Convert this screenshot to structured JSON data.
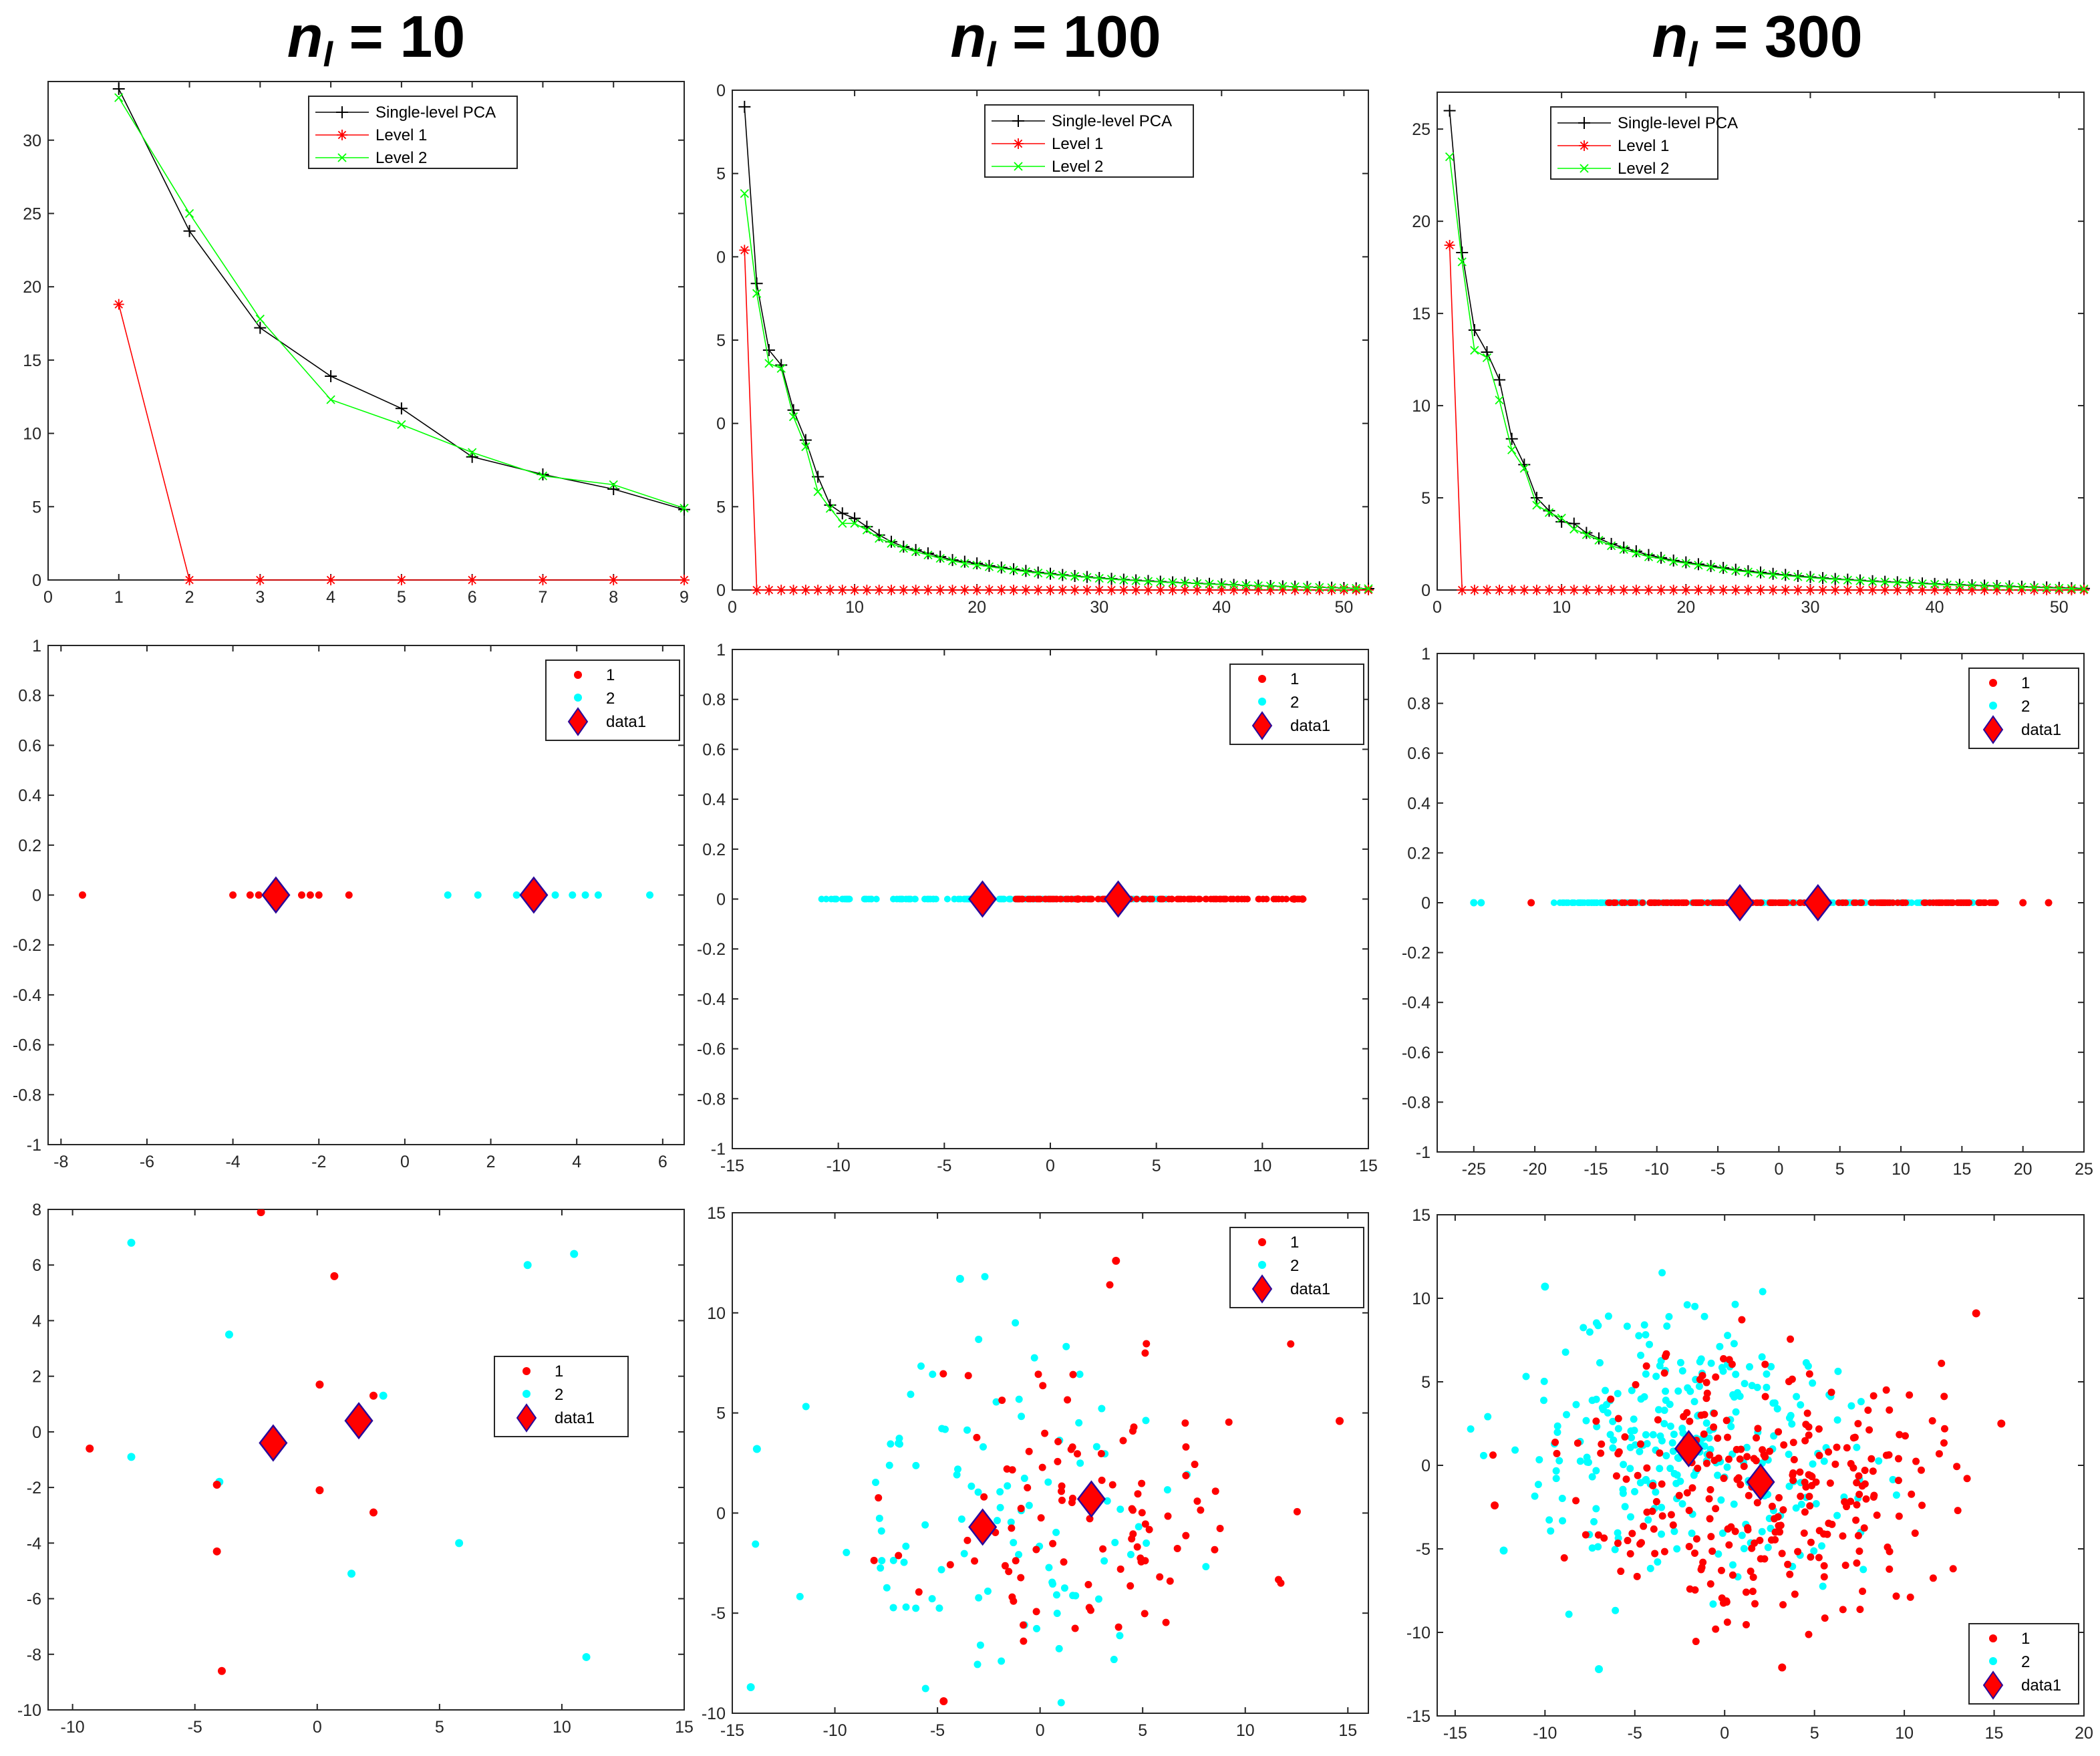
{
  "columns": [
    {
      "prefix": "n",
      "subscript": "l",
      "suffix": " = 10"
    },
    {
      "prefix": "n",
      "subscript": "l",
      "suffix": " = 100"
    },
    {
      "prefix": "n",
      "subscript": "l",
      "suffix": " = 300"
    }
  ],
  "colors": {
    "single": "#000000",
    "level1": "#ff0000",
    "level2": "#00ff00",
    "cls1": "#ff0000",
    "cls2": "#00ffff",
    "diamond_fill": "#ff0000",
    "diamond_edge": "#2a0a9a"
  },
  "chart_data": [
    {
      "type": "line",
      "name": "eigen-nl10",
      "xlim": [
        0,
        9
      ],
      "ylim": [
        0,
        34
      ],
      "xticks": [
        "0",
        "1",
        "2",
        "3",
        "4",
        "5",
        "6",
        "7",
        "8",
        "9"
      ],
      "yticks": [
        "0",
        "5",
        "10",
        "15",
        "20",
        "25",
        "30"
      ],
      "series": [
        {
          "name": "Single-level PCA",
          "x": [
            1,
            2,
            3,
            4,
            5,
            6,
            7,
            8,
            9
          ],
          "values": [
            33.5,
            23.8,
            17.2,
            13.9,
            11.7,
            8.4,
            7.2,
            6.2,
            4.8
          ]
        },
        {
          "name": "Level 1",
          "x": [
            1,
            2,
            3,
            4,
            5,
            6,
            7,
            8,
            9
          ],
          "values": [
            18.8,
            0,
            0,
            0,
            0,
            0,
            0,
            0,
            0
          ]
        },
        {
          "name": "Level 2",
          "x": [
            1,
            2,
            3,
            4,
            5,
            6,
            7,
            8,
            9
          ],
          "values": [
            32.9,
            25.0,
            17.8,
            12.3,
            10.6,
            8.7,
            7.1,
            6.5,
            4.9
          ]
        }
      ]
    },
    {
      "type": "line",
      "name": "eigen-nl100",
      "xlim": [
        0,
        52
      ],
      "ylim": [
        0,
        30
      ],
      "xticks": [
        "0",
        "10",
        "20",
        "30",
        "40",
        "50"
      ],
      "yticks": [
        "0",
        "5",
        "0",
        "5",
        "0",
        "5",
        "0"
      ],
      "series": [
        {
          "name": "Single-level PCA",
          "x_start": 1,
          "values": [
            29.0,
            18.4,
            14.4,
            13.5,
            10.8,
            9.0,
            6.8,
            5.1,
            4.6,
            4.3,
            3.8,
            3.3,
            2.9,
            2.6,
            2.4,
            2.2,
            2.0,
            1.8,
            1.7,
            1.6,
            1.45,
            1.35,
            1.25,
            1.15,
            1.05,
            0.98,
            0.9,
            0.84,
            0.78,
            0.72,
            0.67,
            0.62,
            0.58,
            0.54,
            0.5,
            0.46,
            0.43,
            0.4,
            0.37,
            0.34,
            0.31,
            0.28,
            0.26,
            0.24,
            0.22,
            0.2,
            0.18,
            0.16,
            0.14,
            0.12,
            0.1,
            0.08
          ]
        },
        {
          "name": "Level 1",
          "x_start": 1,
          "values": [
            20.4,
            0,
            0,
            0,
            0,
            0,
            0,
            0,
            0,
            0,
            0,
            0,
            0,
            0,
            0,
            0,
            0,
            0,
            0,
            0,
            0,
            0,
            0,
            0,
            0,
            0,
            0,
            0,
            0,
            0,
            0,
            0,
            0,
            0,
            0,
            0,
            0,
            0,
            0,
            0,
            0,
            0,
            0,
            0,
            0,
            0,
            0,
            0,
            0,
            0,
            0,
            0
          ]
        },
        {
          "name": "Level 2",
          "x_start": 1,
          "values": [
            23.8,
            17.8,
            13.6,
            13.3,
            10.4,
            8.6,
            5.9,
            4.9,
            4.0,
            4.0,
            3.6,
            3.1,
            2.8,
            2.5,
            2.3,
            2.1,
            1.9,
            1.75,
            1.6,
            1.5,
            1.4,
            1.3,
            1.2,
            1.1,
            1.02,
            0.95,
            0.88,
            0.82,
            0.76,
            0.7,
            0.65,
            0.6,
            0.56,
            0.52,
            0.48,
            0.45,
            0.42,
            0.39,
            0.36,
            0.33,
            0.3,
            0.28,
            0.26,
            0.24,
            0.22,
            0.2,
            0.18,
            0.16,
            0.14,
            0.12,
            0.1,
            0.08
          ]
        }
      ]
    },
    {
      "type": "line",
      "name": "eigen-nl300",
      "xlim": [
        0,
        52
      ],
      "ylim": [
        0,
        27
      ],
      "xticks": [
        "0",
        "10",
        "20",
        "30",
        "40",
        "50"
      ],
      "yticks": [
        "0",
        "5",
        "10",
        "15",
        "20",
        "25"
      ],
      "series": [
        {
          "name": "Single-level PCA",
          "x_start": 1,
          "values": [
            26.0,
            18.3,
            14.1,
            12.9,
            11.4,
            8.2,
            6.8,
            5.0,
            4.3,
            3.7,
            3.6,
            3.1,
            2.8,
            2.5,
            2.3,
            2.1,
            1.9,
            1.75,
            1.6,
            1.5,
            1.4,
            1.3,
            1.2,
            1.1,
            1.02,
            0.95,
            0.88,
            0.82,
            0.76,
            0.7,
            0.65,
            0.6,
            0.56,
            0.52,
            0.48,
            0.45,
            0.42,
            0.39,
            0.36,
            0.33,
            0.3,
            0.28,
            0.26,
            0.24,
            0.22,
            0.2,
            0.18,
            0.16,
            0.14,
            0.12,
            0.1,
            0.08
          ]
        },
        {
          "name": "Level 1",
          "x_start": 1,
          "values": [
            18.7,
            0,
            0,
            0,
            0,
            0,
            0,
            0,
            0,
            0,
            0,
            0,
            0,
            0,
            0,
            0,
            0,
            0,
            0,
            0,
            0,
            0,
            0,
            0,
            0,
            0,
            0,
            0,
            0,
            0,
            0,
            0,
            0,
            0,
            0,
            0,
            0,
            0,
            0,
            0,
            0,
            0,
            0,
            0,
            0,
            0,
            0,
            0,
            0,
            0,
            0,
            0
          ]
        },
        {
          "name": "Level 2",
          "x_start": 1,
          "values": [
            23.5,
            17.8,
            13.0,
            12.6,
            10.3,
            7.6,
            6.6,
            4.6,
            4.2,
            3.9,
            3.3,
            3.0,
            2.7,
            2.4,
            2.2,
            2.0,
            1.8,
            1.7,
            1.55,
            1.45,
            1.35,
            1.25,
            1.15,
            1.05,
            0.98,
            0.9,
            0.84,
            0.78,
            0.72,
            0.67,
            0.62,
            0.58,
            0.54,
            0.5,
            0.46,
            0.43,
            0.4,
            0.37,
            0.34,
            0.31,
            0.28,
            0.26,
            0.24,
            0.22,
            0.2,
            0.18,
            0.16,
            0.14,
            0.12,
            0.1,
            0.08,
            0.06
          ]
        }
      ]
    },
    {
      "type": "scatter",
      "name": "proj1d-nl10",
      "xlim": [
        -8.3,
        6.5
      ],
      "ylim": [
        -1,
        1
      ],
      "xticks": [
        "-8",
        "-6",
        "-4",
        "-2",
        "0",
        "2",
        "4",
        "6"
      ],
      "yticks": [
        "-1",
        "-0.8",
        "-0.6",
        "-0.4",
        "-0.2",
        "0",
        "0.2",
        "0.4",
        "0.6",
        "0.8",
        "1"
      ],
      "series": [
        {
          "name": "1",
          "x": [
            -7.5,
            -4.0,
            -3.6,
            -3.4,
            -3.2,
            -2.9,
            -2.4,
            -2.2,
            -2.0,
            -1.3
          ],
          "y": [
            0,
            0,
            0,
            0,
            0,
            0,
            0,
            0,
            0,
            0
          ]
        },
        {
          "name": "2",
          "x": [
            1.0,
            1.7,
            2.6,
            3.0,
            3.5,
            3.9,
            4.2,
            4.5,
            5.7
          ],
          "y": [
            0,
            0,
            0,
            0,
            0,
            0,
            0,
            0,
            0
          ]
        },
        {
          "name": "data1",
          "x": [
            -3.0,
            3.0
          ],
          "y": [
            0,
            0
          ]
        }
      ]
    },
    {
      "type": "scatter",
      "name": "proj1d-nl100",
      "xlim": [
        -15,
        15
      ],
      "ylim": [
        -1,
        1
      ],
      "xticks": [
        "-15",
        "-10",
        "-5",
        "0",
        "5",
        "10",
        "15"
      ],
      "yticks": [
        "-1",
        "-0.8",
        "-0.6",
        "-0.4",
        "-0.2",
        "0",
        "0.2",
        "0.4",
        "0.6",
        "0.8",
        "1"
      ],
      "range_points": {
        "1": {
          "min": -2.0,
          "max": 12.0,
          "count": 120
        },
        "2": {
          "min": -10.8,
          "max": 5.5,
          "count": 140
        }
      },
      "series": [
        {
          "name": "1",
          "x": [
            1.3,
            11.5,
            11.9
          ],
          "y": [
            0,
            0,
            0
          ]
        },
        {
          "name": "2",
          "x": [],
          "y": []
        },
        {
          "name": "data1",
          "x": [
            -3.2,
            3.2
          ],
          "y": [
            0,
            0
          ]
        }
      ]
    },
    {
      "type": "scatter",
      "name": "proj1d-nl300",
      "xlim": [
        -28,
        25
      ],
      "ylim": [
        -1,
        1
      ],
      "xticks": [
        "-25",
        "-20",
        "-15",
        "-10",
        "-5",
        "0",
        "5",
        "10",
        "15",
        "20",
        "25"
      ],
      "yticks": [
        "-1",
        "-0.8",
        "-0.6",
        "-0.4",
        "-0.2",
        "0",
        "0.2",
        "0.4",
        "0.6",
        "0.8",
        "1"
      ],
      "range_points": {
        "1": {
          "min": -14.0,
          "max": 17.8,
          "count": 200
        },
        "2": {
          "min": -18.5,
          "max": 16.5,
          "count": 200
        }
      },
      "series": [
        {
          "name": "1",
          "x": [
            -20.3,
            22.1,
            20.0
          ],
          "y": [
            0,
            0,
            0
          ]
        },
        {
          "name": "2",
          "x": [
            -25.0,
            -24.4
          ],
          "y": [
            0,
            0
          ]
        },
        {
          "name": "data1",
          "x": [
            -3.2,
            3.2
          ],
          "y": [
            0,
            0
          ]
        }
      ]
    },
    {
      "type": "scatter",
      "name": "proj2d-nl10",
      "xlim": [
        -11,
        15
      ],
      "ylim": [
        -10,
        8
      ],
      "xticks": [
        "-10",
        "-5",
        "0",
        "5",
        "10",
        "15"
      ],
      "yticks": [
        "-10",
        "-8",
        "-6",
        "-4",
        "-2",
        "0",
        "2",
        "4",
        "6",
        "8"
      ],
      "series": [
        {
          "name": "1",
          "x": [
            -9.3,
            -2.3,
            0.7,
            0.1,
            2.3,
            0.1,
            -4.1,
            -4.1,
            -3.9,
            2.3
          ],
          "y": [
            -0.6,
            7.9,
            5.6,
            1.7,
            1.3,
            -2.1,
            -1.9,
            -4.3,
            -8.6,
            -2.9
          ]
        },
        {
          "name": "2",
          "x": [
            -7.6,
            -3.6,
            -7.6,
            -4.0,
            2.7,
            5.8,
            8.6,
            10.5,
            11.0,
            1.4
          ],
          "y": [
            6.8,
            3.5,
            -0.9,
            -1.8,
            1.3,
            -4.0,
            6.0,
            6.4,
            -8.1,
            -5.1
          ]
        },
        {
          "name": "data1",
          "x": [
            -1.8,
            1.7
          ],
          "y": [
            -0.4,
            0.4
          ]
        }
      ]
    },
    {
      "type": "scatter",
      "name": "proj2d-nl100",
      "xlim": [
        -15,
        16
      ],
      "ylim": [
        -10,
        15
      ],
      "xticks": [
        "-15",
        "-10",
        "-5",
        "0",
        "5",
        "10",
        "15"
      ],
      "yticks": [
        "-10",
        "-5",
        "0",
        "5",
        "10",
        "15"
      ],
      "random_points": {
        "1": {
          "count": 100,
          "mean": [
            2.5,
            0.5
          ],
          "sd": [
            4.2,
            4.0
          ],
          "seed": 11
        },
        "2": {
          "count": 100,
          "mean": [
            -2.5,
            -0.5
          ],
          "sd": [
            4.2,
            4.0
          ],
          "seed": 23
        }
      },
      "series": [
        {
          "name": "1",
          "x": [
            3.7,
            14.6,
            -4.7
          ],
          "y": [
            12.6,
            4.6,
            -9.4
          ]
        },
        {
          "name": "2",
          "x": [
            -13.8,
            -14.1,
            -3.9
          ],
          "y": [
            3.2,
            -8.7,
            11.7
          ]
        },
        {
          "name": "data1",
          "x": [
            -2.8,
            2.5
          ],
          "y": [
            -0.7,
            0.7
          ]
        }
      ]
    },
    {
      "type": "scatter",
      "name": "proj2d-nl300",
      "xlim": [
        -16,
        20
      ],
      "ylim": [
        -15,
        15
      ],
      "xticks": [
        "-15",
        "-10",
        "-5",
        "0",
        "5",
        "10",
        "15",
        "20"
      ],
      "yticks": [
        "-15",
        "-10",
        "-5",
        "0",
        "5",
        "10",
        "15"
      ],
      "random_points": {
        "1": {
          "count": 280,
          "mean": [
            2.0,
            -1.0
          ],
          "sd": [
            4.8,
            4.0
          ],
          "seed": 37
        },
        "2": {
          "count": 280,
          "mean": [
            -2.0,
            1.0
          ],
          "sd": [
            4.8,
            4.0
          ],
          "seed": 51
        }
      },
      "series": [
        {
          "name": "1",
          "x": [
            15.4,
            14.0,
            -12.8,
            3.2
          ],
          "y": [
            2.5,
            9.1,
            -2.4,
            -12.1
          ]
        },
        {
          "name": "2",
          "x": [
            -12.3,
            -7.0,
            -10.0
          ],
          "y": [
            -5.1,
            -12.2,
            10.7
          ]
        },
        {
          "name": "data1",
          "x": [
            -2.0,
            2.0
          ],
          "y": [
            1.0,
            -1.0
          ]
        }
      ]
    }
  ],
  "legends": {
    "eigen": [
      "Single-level PCA",
      "Level 1",
      "Level 2"
    ],
    "scatter": [
      "1",
      "2",
      "data1"
    ]
  }
}
